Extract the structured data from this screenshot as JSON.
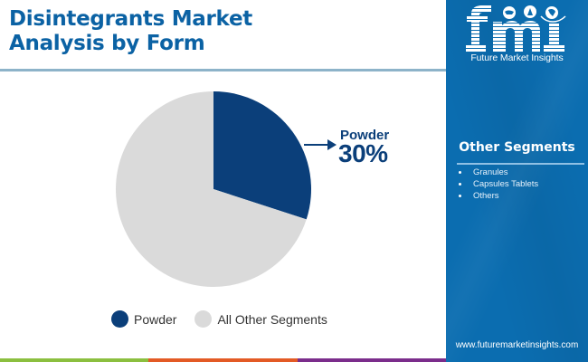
{
  "title": {
    "line1": "Disintegrants Market",
    "line2": "Analysis by Form"
  },
  "callout": {
    "label": "Powder",
    "value": "30%"
  },
  "legend": [
    {
      "label": "Powder",
      "color": "#0b3f7a"
    },
    {
      "label": "All Other Segments",
      "color": "#dadada"
    }
  ],
  "panel": {
    "logo_text": "fmi",
    "logo_subtitle": "Future Market Insights",
    "segments_title": "Other Segments",
    "segments": [
      "Granules",
      "Capsules Tablets",
      "Others"
    ],
    "website": "www.futuremarketinsights.com",
    "background_color": "#0b6db0"
  },
  "bottom_bar_colors": [
    "#8bbf3f",
    "#e35a25",
    "#7b2d8b"
  ],
  "chart_data": {
    "type": "pie",
    "title": "Disintegrants Market Analysis by Form",
    "categories": [
      "Powder",
      "All Other Segments"
    ],
    "values": [
      30,
      70
    ],
    "colors": [
      "#0b3f7a",
      "#dadada"
    ],
    "start_angle": "12 o'clock, clockwise",
    "annotations": [
      {
        "label": "Powder",
        "value": "30%"
      }
    ],
    "legend_position": "bottom"
  }
}
